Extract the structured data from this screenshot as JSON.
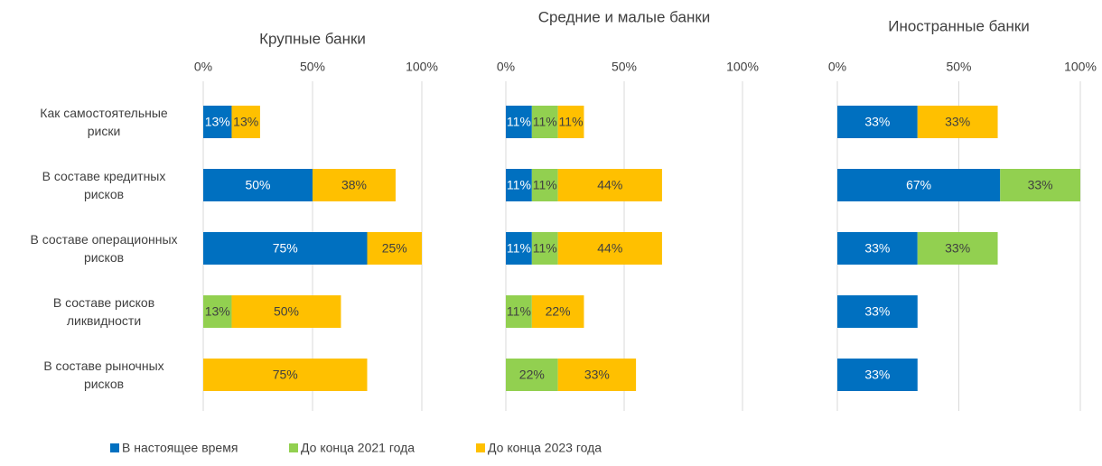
{
  "chart_data": [
    {
      "type": "bar",
      "orientation": "horizontal",
      "stacked": true,
      "title": "Крупные банки",
      "categories": [
        "Как самостоятельные риски",
        "В составе кредитных рисков",
        "В составе операционных рисков",
        "В составе рисков ликвидности",
        "В составе рыночных рисков"
      ],
      "xlim": [
        0,
        100
      ],
      "xticks": [
        {
          "value": 0,
          "label": "0%"
        },
        {
          "value": 50,
          "label": "50%"
        },
        {
          "value": 100,
          "label": "100%"
        }
      ],
      "grid": true,
      "legend": "bottom",
      "series": [
        {
          "name": "В настоящее время",
          "color": "#0070c0",
          "values": [
            13,
            50,
            75,
            null,
            null
          ],
          "value_labels": [
            "13%",
            "50%",
            "75%",
            null,
            null
          ]
        },
        {
          "name": "До конца 2021 года",
          "color": "#92d050",
          "values": [
            null,
            null,
            null,
            13,
            null
          ],
          "value_labels": [
            null,
            null,
            null,
            "13%",
            null
          ]
        },
        {
          "name": "До конца 2023 года",
          "color": "#ffc000",
          "values": [
            13,
            38,
            25,
            50,
            75
          ],
          "value_labels": [
            "13%",
            "38%",
            "25%",
            "50%",
            "75%"
          ]
        }
      ]
    },
    {
      "type": "bar",
      "orientation": "horizontal",
      "stacked": true,
      "title": "Средние и малые банки",
      "xlim": [
        0,
        100
      ],
      "xticks": [
        {
          "value": 0,
          "label": "0%"
        },
        {
          "value": 50,
          "label": "50%"
        },
        {
          "value": 100,
          "label": "100%"
        }
      ],
      "grid": true,
      "series": [
        {
          "color": "#0070c0",
          "values": [
            11,
            11,
            11,
            null,
            null
          ],
          "value_labels": [
            "11%",
            "11%",
            "11%",
            null,
            null
          ]
        },
        {
          "color": "#92d050",
          "values": [
            11,
            11,
            11,
            11,
            22
          ],
          "value_labels": [
            "11%",
            "11%",
            "11%",
            "11%",
            "22%"
          ]
        },
        {
          "color": "#ffc000",
          "values": [
            11,
            44,
            44,
            22,
            33
          ],
          "value_labels": [
            "11%",
            "44%",
            "44%",
            "22%",
            "33%"
          ]
        }
      ]
    },
    {
      "type": "bar",
      "orientation": "horizontal",
      "stacked": true,
      "title": "Иностранные банки",
      "xlim": [
        0,
        100
      ],
      "xticks": [
        {
          "value": 0,
          "label": "0%"
        },
        {
          "value": 50,
          "label": "50%"
        },
        {
          "value": 100,
          "label": "100%"
        }
      ],
      "grid": true,
      "series": [
        {
          "color": "#0070c0",
          "values": [
            33,
            67,
            33,
            33,
            33
          ],
          "value_labels": [
            "33%",
            "67%",
            "33%",
            "33%",
            "33%"
          ]
        },
        {
          "color": "#92d050",
          "values": [
            null,
            33,
            33,
            null,
            null
          ],
          "value_labels": [
            null,
            "33%",
            "33%",
            null,
            null
          ]
        },
        {
          "color": "#ffc000",
          "values": [
            33,
            null,
            null,
            null,
            null
          ],
          "value_labels": [
            "33%",
            null,
            null,
            null,
            null
          ]
        }
      ]
    }
  ]
}
